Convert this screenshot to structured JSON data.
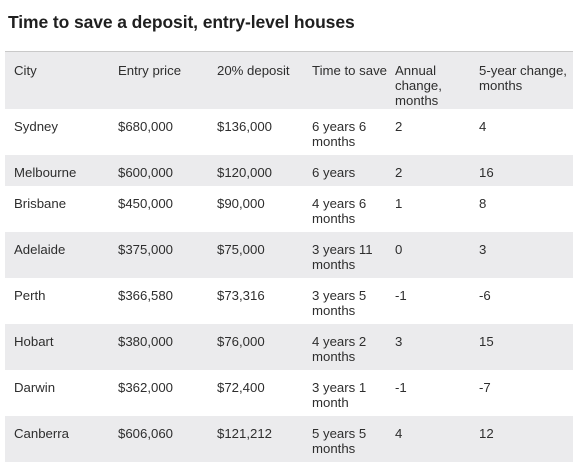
{
  "title": "Time to save a deposit, entry-level houses",
  "headers": {
    "city": "City",
    "entry_price": "Entry price",
    "deposit": "20% deposit",
    "time_to_save": "Time to save",
    "annual_change": "Annual change, months",
    "five_year_change": "5-year change, months"
  },
  "rows": [
    {
      "city": "Sydney",
      "entry_price": "$680,000",
      "deposit": "$136,000",
      "time_to_save": "6 years 6 months",
      "annual_change": "2",
      "five_year_change": "4"
    },
    {
      "city": "Melbourne",
      "entry_price": "$600,000",
      "deposit": "$120,000",
      "time_to_save": "6 years",
      "annual_change": "2",
      "five_year_change": "16"
    },
    {
      "city": "Brisbane",
      "entry_price": "$450,000",
      "deposit": "$90,000",
      "time_to_save": "4 years 6 months",
      "annual_change": "1",
      "five_year_change": "8"
    },
    {
      "city": "Adelaide",
      "entry_price": "$375,000",
      "deposit": "$75,000",
      "time_to_save": "3 years 11 months",
      "annual_change": "0",
      "five_year_change": "3"
    },
    {
      "city": "Perth",
      "entry_price": "$366,580",
      "deposit": "$73,316",
      "time_to_save": "3 years 5 months",
      "annual_change": "-1",
      "five_year_change": "-6"
    },
    {
      "city": "Hobart",
      "entry_price": "$380,000",
      "deposit": "$76,000",
      "time_to_save": "4 years 2 months",
      "annual_change": "3",
      "five_year_change": "15"
    },
    {
      "city": "Darwin",
      "entry_price": "$362,000",
      "deposit": "$72,400",
      "time_to_save": "3 years 1 month",
      "annual_change": "-1",
      "five_year_change": "-7"
    },
    {
      "city": "Canberra",
      "entry_price": "$606,060",
      "deposit": "$121,212",
      "time_to_save": "5 years 5 months",
      "annual_change": "4",
      "five_year_change": "12"
    }
  ]
}
